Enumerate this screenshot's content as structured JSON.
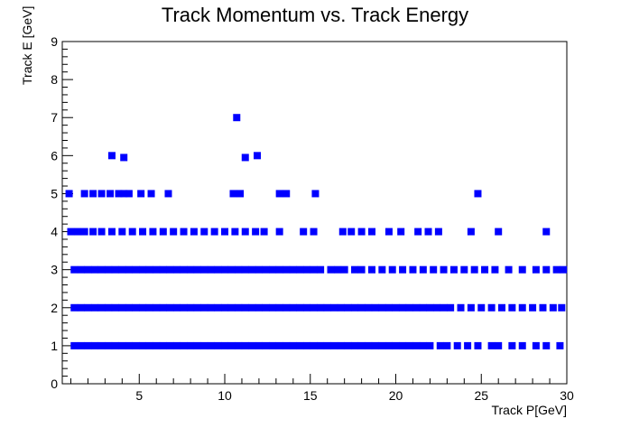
{
  "chart_data": {
    "type": "scatter",
    "title": "Track Momentum vs. Track Energy",
    "xlabel": "Track P[GeV]",
    "ylabel": "Track E [GeV]",
    "xlim": [
      0.5,
      30
    ],
    "ylim": [
      0,
      9
    ],
    "x_ticks": [
      5,
      10,
      15,
      20,
      25,
      30
    ],
    "y_ticks": [
      0,
      1,
      2,
      3,
      4,
      5,
      6,
      7,
      8,
      9
    ],
    "grid": false,
    "marker_color": "#0000ff",
    "marker": "square",
    "series": [
      {
        "points": [
          [
            1.2,
            1.0
          ],
          [
            1.6,
            1.0
          ],
          [
            2.0,
            1.0
          ],
          [
            2.4,
            1.0
          ],
          [
            2.8,
            1.0
          ],
          [
            3.2,
            1.0
          ],
          [
            3.6,
            1.0
          ],
          [
            4.0,
            1.0
          ],
          [
            4.4,
            1.0
          ],
          [
            4.8,
            1.0
          ],
          [
            5.2,
            1.0
          ],
          [
            5.6,
            1.0
          ],
          [
            6.0,
            1.0
          ],
          [
            6.4,
            1.0
          ],
          [
            6.8,
            1.0
          ],
          [
            7.2,
            1.0
          ],
          [
            7.6,
            1.0
          ],
          [
            8.0,
            1.0
          ],
          [
            8.4,
            1.0
          ],
          [
            8.8,
            1.0
          ],
          [
            9.2,
            1.0
          ],
          [
            9.6,
            1.0
          ],
          [
            10.0,
            1.0
          ],
          [
            10.4,
            1.0
          ],
          [
            10.8,
            1.0
          ],
          [
            11.2,
            1.0
          ],
          [
            11.6,
            1.0
          ],
          [
            12.0,
            1.0
          ],
          [
            12.4,
            1.0
          ],
          [
            12.8,
            1.0
          ],
          [
            13.2,
            1.0
          ],
          [
            13.6,
            1.0
          ],
          [
            14.0,
            1.0
          ],
          [
            14.4,
            1.0
          ],
          [
            14.8,
            1.0
          ],
          [
            15.2,
            1.0
          ],
          [
            15.6,
            1.0
          ],
          [
            16.0,
            1.0
          ],
          [
            16.4,
            1.0
          ],
          [
            16.8,
            1.0
          ],
          [
            17.2,
            1.0
          ],
          [
            17.6,
            1.0
          ],
          [
            18.0,
            1.0
          ],
          [
            18.4,
            1.0
          ],
          [
            18.8,
            1.0
          ],
          [
            19.2,
            1.0
          ],
          [
            19.6,
            1.0
          ],
          [
            20.0,
            1.0
          ],
          [
            20.4,
            1.0
          ],
          [
            20.8,
            1.0
          ],
          [
            21.2,
            1.0
          ],
          [
            21.6,
            1.0
          ],
          [
            22.0,
            1.0
          ],
          [
            22.6,
            1.0
          ],
          [
            23.0,
            1.0
          ],
          [
            23.6,
            1.0
          ],
          [
            24.2,
            1.0
          ],
          [
            24.8,
            1.0
          ],
          [
            25.6,
            1.0
          ],
          [
            26.0,
            1.0
          ],
          [
            26.8,
            1.0
          ],
          [
            27.4,
            1.0
          ],
          [
            28.2,
            1.0
          ],
          [
            28.8,
            1.0
          ],
          [
            29.6,
            1.0
          ],
          [
            1.2,
            2.0
          ],
          [
            1.6,
            2.0
          ],
          [
            2.0,
            2.0
          ],
          [
            2.4,
            2.0
          ],
          [
            2.8,
            2.0
          ],
          [
            3.2,
            2.0
          ],
          [
            3.6,
            2.0
          ],
          [
            4.0,
            2.0
          ],
          [
            4.4,
            2.0
          ],
          [
            4.8,
            2.0
          ],
          [
            5.2,
            2.0
          ],
          [
            5.6,
            2.0
          ],
          [
            6.0,
            2.0
          ],
          [
            6.4,
            2.0
          ],
          [
            6.8,
            2.0
          ],
          [
            7.2,
            2.0
          ],
          [
            7.6,
            2.0
          ],
          [
            8.0,
            2.0
          ],
          [
            8.4,
            2.0
          ],
          [
            8.8,
            2.0
          ],
          [
            9.2,
            2.0
          ],
          [
            9.6,
            2.0
          ],
          [
            10.0,
            2.0
          ],
          [
            10.4,
            2.0
          ],
          [
            10.8,
            2.0
          ],
          [
            11.2,
            2.0
          ],
          [
            11.6,
            2.0
          ],
          [
            12.0,
            2.0
          ],
          [
            12.4,
            2.0
          ],
          [
            12.8,
            2.0
          ],
          [
            13.2,
            2.0
          ],
          [
            13.6,
            2.0
          ],
          [
            14.0,
            2.0
          ],
          [
            14.4,
            2.0
          ],
          [
            14.8,
            2.0
          ],
          [
            15.2,
            2.0
          ],
          [
            15.6,
            2.0
          ],
          [
            16.0,
            2.0
          ],
          [
            16.4,
            2.0
          ],
          [
            16.8,
            2.0
          ],
          [
            17.2,
            2.0
          ],
          [
            17.6,
            2.0
          ],
          [
            18.0,
            2.0
          ],
          [
            18.4,
            2.0
          ],
          [
            18.8,
            2.0
          ],
          [
            19.2,
            2.0
          ],
          [
            19.6,
            2.0
          ],
          [
            20.0,
            2.0
          ],
          [
            20.4,
            2.0
          ],
          [
            20.8,
            2.0
          ],
          [
            21.2,
            2.0
          ],
          [
            21.6,
            2.0
          ],
          [
            22.0,
            2.0
          ],
          [
            22.4,
            2.0
          ],
          [
            22.8,
            2.0
          ],
          [
            23.2,
            2.0
          ],
          [
            23.8,
            2.0
          ],
          [
            24.4,
            2.0
          ],
          [
            25.0,
            2.0
          ],
          [
            25.6,
            2.0
          ],
          [
            26.2,
            2.0
          ],
          [
            26.8,
            2.0
          ],
          [
            27.4,
            2.0
          ],
          [
            28.0,
            2.0
          ],
          [
            28.6,
            2.0
          ],
          [
            29.2,
            2.0
          ],
          [
            29.7,
            2.0
          ],
          [
            1.2,
            3.0
          ],
          [
            1.6,
            3.0
          ],
          [
            2.0,
            3.0
          ],
          [
            2.4,
            3.0
          ],
          [
            2.8,
            3.0
          ],
          [
            3.2,
            3.0
          ],
          [
            3.6,
            3.0
          ],
          [
            4.0,
            3.0
          ],
          [
            4.4,
            3.0
          ],
          [
            4.8,
            3.0
          ],
          [
            5.2,
            3.0
          ],
          [
            5.6,
            3.0
          ],
          [
            6.0,
            3.0
          ],
          [
            6.4,
            3.0
          ],
          [
            6.8,
            3.0
          ],
          [
            7.2,
            3.0
          ],
          [
            7.6,
            3.0
          ],
          [
            8.0,
            3.0
          ],
          [
            8.4,
            3.0
          ],
          [
            8.8,
            3.0
          ],
          [
            9.2,
            3.0
          ],
          [
            9.6,
            3.0
          ],
          [
            10.0,
            3.0
          ],
          [
            10.4,
            3.0
          ],
          [
            10.8,
            3.0
          ],
          [
            11.2,
            3.0
          ],
          [
            11.6,
            3.0
          ],
          [
            12.0,
            3.0
          ],
          [
            12.4,
            3.0
          ],
          [
            12.8,
            3.0
          ],
          [
            13.2,
            3.0
          ],
          [
            13.6,
            3.0
          ],
          [
            14.0,
            3.0
          ],
          [
            14.4,
            3.0
          ],
          [
            14.8,
            3.0
          ],
          [
            15.2,
            3.0
          ],
          [
            15.6,
            3.0
          ],
          [
            16.2,
            3.0
          ],
          [
            16.6,
            3.0
          ],
          [
            17.0,
            3.0
          ],
          [
            17.6,
            3.0
          ],
          [
            18.0,
            3.0
          ],
          [
            18.6,
            3.0
          ],
          [
            19.2,
            3.0
          ],
          [
            19.8,
            3.0
          ],
          [
            20.4,
            3.0
          ],
          [
            21.0,
            3.0
          ],
          [
            21.6,
            3.0
          ],
          [
            22.2,
            3.0
          ],
          [
            22.8,
            3.0
          ],
          [
            23.4,
            3.0
          ],
          [
            24.0,
            3.0
          ],
          [
            24.6,
            3.0
          ],
          [
            25.2,
            3.0
          ],
          [
            25.8,
            3.0
          ],
          [
            26.6,
            3.0
          ],
          [
            27.4,
            3.0
          ],
          [
            28.2,
            3.0
          ],
          [
            28.8,
            3.0
          ],
          [
            29.4,
            3.0
          ],
          [
            29.8,
            3.0
          ],
          [
            1.0,
            4.0
          ],
          [
            1.4,
            4.0
          ],
          [
            1.8,
            4.0
          ],
          [
            2.3,
            4.0
          ],
          [
            2.8,
            4.0
          ],
          [
            3.4,
            4.0
          ],
          [
            4.0,
            4.0
          ],
          [
            4.6,
            4.0
          ],
          [
            5.2,
            4.0
          ],
          [
            5.8,
            4.0
          ],
          [
            6.4,
            4.0
          ],
          [
            7.0,
            4.0
          ],
          [
            7.6,
            4.0
          ],
          [
            8.2,
            4.0
          ],
          [
            8.8,
            4.0
          ],
          [
            9.4,
            4.0
          ],
          [
            10.0,
            4.0
          ],
          [
            10.6,
            4.0
          ],
          [
            11.2,
            4.0
          ],
          [
            11.8,
            4.0
          ],
          [
            12.3,
            4.0
          ],
          [
            13.2,
            4.0
          ],
          [
            14.6,
            4.0
          ],
          [
            15.2,
            4.0
          ],
          [
            16.9,
            4.0
          ],
          [
            17.4,
            4.0
          ],
          [
            18.0,
            4.0
          ],
          [
            18.6,
            4.0
          ],
          [
            19.6,
            4.0
          ],
          [
            20.3,
            4.0
          ],
          [
            21.3,
            4.0
          ],
          [
            21.9,
            4.0
          ],
          [
            22.5,
            4.0
          ],
          [
            24.4,
            4.0
          ],
          [
            26.0,
            4.0
          ],
          [
            28.8,
            4.0
          ],
          [
            0.9,
            5.0
          ],
          [
            1.8,
            5.0
          ],
          [
            2.3,
            5.0
          ],
          [
            2.8,
            5.0
          ],
          [
            3.3,
            5.0
          ],
          [
            3.8,
            5.0
          ],
          [
            4.1,
            5.0
          ],
          [
            4.4,
            5.0
          ],
          [
            5.1,
            5.0
          ],
          [
            5.7,
            5.0
          ],
          [
            6.7,
            5.0
          ],
          [
            10.5,
            5.0
          ],
          [
            10.9,
            5.0
          ],
          [
            13.2,
            5.0
          ],
          [
            13.6,
            5.0
          ],
          [
            15.3,
            5.0
          ],
          [
            24.8,
            5.0
          ],
          [
            3.4,
            6.0
          ],
          [
            4.1,
            5.95
          ],
          [
            11.2,
            5.95
          ],
          [
            11.9,
            6.0
          ],
          [
            10.7,
            7.0
          ]
        ]
      }
    ]
  }
}
